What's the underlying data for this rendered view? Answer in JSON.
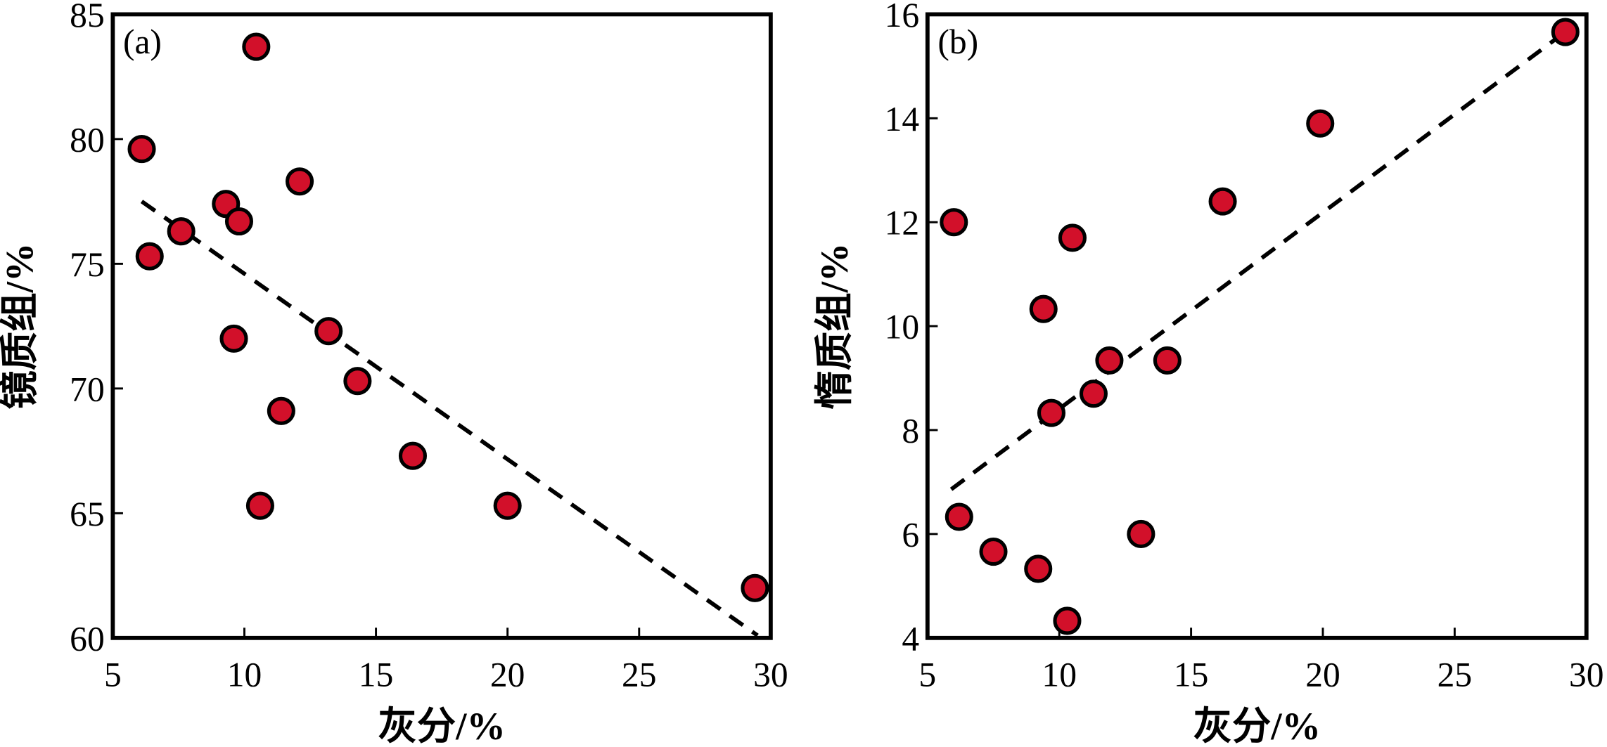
{
  "chart_data": [
    {
      "type": "scatter",
      "panel_label": "(a)",
      "xlabel": "灰分/%",
      "ylabel": "镜质组/%",
      "xlim": [
        5,
        30
      ],
      "ylim": [
        60,
        85
      ],
      "xticks": [
        5,
        10,
        15,
        20,
        25,
        30
      ],
      "yticks": [
        60,
        65,
        70,
        75,
        80,
        85
      ],
      "grid": false,
      "marker_color": "#d2102a",
      "points": [
        [
          6.1,
          79.6
        ],
        [
          10.45,
          83.7
        ],
        [
          6.4,
          75.3
        ],
        [
          7.6,
          76.3
        ],
        [
          9.3,
          77.4
        ],
        [
          9.8,
          76.7
        ],
        [
          12.1,
          78.3
        ],
        [
          9.6,
          72.0
        ],
        [
          13.2,
          72.3
        ],
        [
          11.4,
          69.1
        ],
        [
          14.3,
          70.3
        ],
        [
          10.6,
          65.3
        ],
        [
          16.4,
          67.3
        ],
        [
          20.0,
          65.3
        ],
        [
          29.4,
          62.0
        ]
      ],
      "trendline": {
        "style": "dashed",
        "from": [
          6.1,
          77.5
        ],
        "to": [
          29.5,
          60.1
        ]
      }
    },
    {
      "type": "scatter",
      "panel_label": "(b)",
      "xlabel": "灰分/%",
      "ylabel": "惰质组/%",
      "xlim": [
        5,
        30
      ],
      "ylim": [
        4,
        16
      ],
      "xticks": [
        5,
        10,
        15,
        20,
        25,
        30
      ],
      "yticks": [
        4,
        6,
        8,
        10,
        12,
        14,
        16
      ],
      "grid": false,
      "marker_color": "#d2102a",
      "points": [
        [
          6.0,
          12.0
        ],
        [
          19.9,
          13.9
        ],
        [
          29.2,
          15.66
        ],
        [
          16.2,
          12.4
        ],
        [
          10.5,
          11.7
        ],
        [
          9.4,
          10.33
        ],
        [
          11.9,
          9.34
        ],
        [
          14.1,
          9.34
        ],
        [
          11.3,
          8.7
        ],
        [
          9.7,
          8.33
        ],
        [
          6.2,
          6.33
        ],
        [
          7.5,
          5.66
        ],
        [
          9.2,
          5.33
        ],
        [
          13.1,
          6.0
        ],
        [
          10.3,
          4.33
        ]
      ],
      "trendline": {
        "style": "dashed",
        "from": [
          5.9,
          6.86
        ],
        "to": [
          29.3,
          15.7
        ]
      }
    }
  ]
}
